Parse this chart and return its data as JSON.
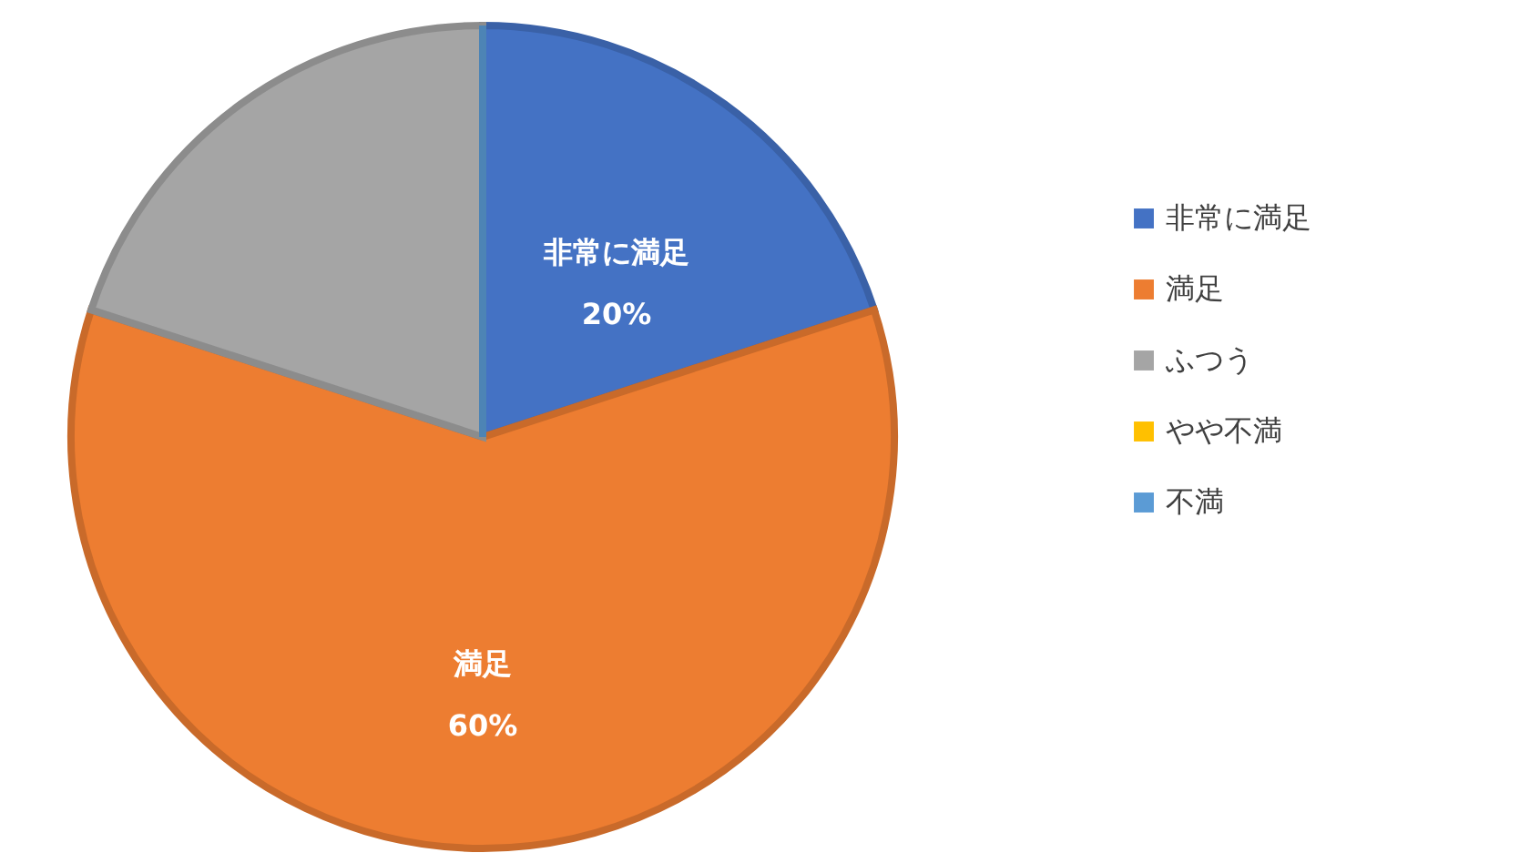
{
  "chart_data": {
    "type": "pie",
    "categories": [
      "非常に満足",
      "満足",
      "ふつう",
      "やや不満",
      "不満"
    ],
    "values": [
      20,
      60,
      20,
      0,
      0
    ],
    "colors": [
      "#4472c4",
      "#ed7d31",
      "#a5a5a5",
      "#ffc000",
      "#5b9bd5"
    ],
    "value_labels": [
      "20%",
      "60%",
      null,
      null,
      null
    ],
    "legend": "right"
  }
}
